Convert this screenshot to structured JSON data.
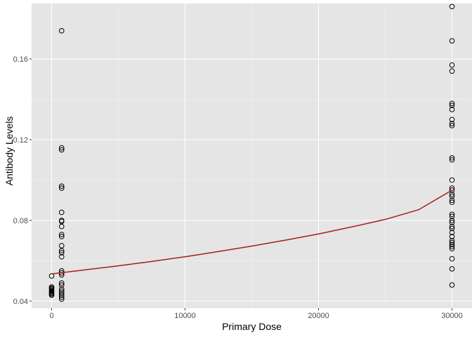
{
  "chart_data": {
    "type": "scatter",
    "title": "",
    "xlabel": "Primary Dose",
    "ylabel": "Antibody Levels",
    "xlim": [
      -1500,
      31500
    ],
    "ylim": [
      0.0365,
      0.1875
    ],
    "x_ticks": [
      0,
      10000,
      20000,
      30000
    ],
    "x_tick_labels": [
      "0",
      "10000",
      "20000",
      "30000"
    ],
    "y_ticks": [
      0.04,
      0.08,
      0.12,
      0.16
    ],
    "y_tick_labels": [
      "0.04",
      "0.08",
      "0.12",
      "0.16"
    ],
    "grid": true,
    "legend": "none",
    "colors": {
      "panel": "#e5e5e5",
      "grid_major": "#ffffff",
      "point_stroke": "#000000",
      "fit_line": "#a31e22"
    },
    "points": [
      {
        "x": 0,
        "y": 0.0525
      },
      {
        "x": 0,
        "y": 0.047
      },
      {
        "x": 0,
        "y": 0.0465
      },
      {
        "x": 0,
        "y": 0.046
      },
      {
        "x": 0,
        "y": 0.0455
      },
      {
        "x": 0,
        "y": 0.045
      },
      {
        "x": 0,
        "y": 0.0445
      },
      {
        "x": 0,
        "y": 0.044
      },
      {
        "x": 0,
        "y": 0.0435
      },
      {
        "x": 0,
        "y": 0.043
      },
      {
        "x": 750,
        "y": 0.174
      },
      {
        "x": 750,
        "y": 0.116
      },
      {
        "x": 750,
        "y": 0.115
      },
      {
        "x": 750,
        "y": 0.097
      },
      {
        "x": 750,
        "y": 0.096
      },
      {
        "x": 750,
        "y": 0.084
      },
      {
        "x": 750,
        "y": 0.08
      },
      {
        "x": 750,
        "y": 0.0795
      },
      {
        "x": 750,
        "y": 0.077
      },
      {
        "x": 750,
        "y": 0.073
      },
      {
        "x": 750,
        "y": 0.072
      },
      {
        "x": 750,
        "y": 0.0675
      },
      {
        "x": 750,
        "y": 0.065
      },
      {
        "x": 750,
        "y": 0.064
      },
      {
        "x": 750,
        "y": 0.062
      },
      {
        "x": 750,
        "y": 0.055
      },
      {
        "x": 750,
        "y": 0.054
      },
      {
        "x": 750,
        "y": 0.053
      },
      {
        "x": 750,
        "y": 0.049
      },
      {
        "x": 750,
        "y": 0.048
      },
      {
        "x": 750,
        "y": 0.046
      },
      {
        "x": 750,
        "y": 0.045
      },
      {
        "x": 750,
        "y": 0.044
      },
      {
        "x": 750,
        "y": 0.043
      },
      {
        "x": 750,
        "y": 0.042
      },
      {
        "x": 750,
        "y": 0.041
      },
      {
        "x": 30000,
        "y": 0.186
      },
      {
        "x": 30000,
        "y": 0.169
      },
      {
        "x": 30000,
        "y": 0.157
      },
      {
        "x": 30000,
        "y": 0.154
      },
      {
        "x": 30000,
        "y": 0.138
      },
      {
        "x": 30000,
        "y": 0.137
      },
      {
        "x": 30000,
        "y": 0.135
      },
      {
        "x": 30000,
        "y": 0.13
      },
      {
        "x": 30000,
        "y": 0.128
      },
      {
        "x": 30000,
        "y": 0.127
      },
      {
        "x": 30000,
        "y": 0.111
      },
      {
        "x": 30000,
        "y": 0.11
      },
      {
        "x": 30000,
        "y": 0.1
      },
      {
        "x": 30000,
        "y": 0.096
      },
      {
        "x": 30000,
        "y": 0.095
      },
      {
        "x": 30000,
        "y": 0.093
      },
      {
        "x": 30000,
        "y": 0.092
      },
      {
        "x": 30000,
        "y": 0.09
      },
      {
        "x": 30000,
        "y": 0.089
      },
      {
        "x": 30000,
        "y": 0.083
      },
      {
        "x": 30000,
        "y": 0.082
      },
      {
        "x": 30000,
        "y": 0.08
      },
      {
        "x": 30000,
        "y": 0.079
      },
      {
        "x": 30000,
        "y": 0.077
      },
      {
        "x": 30000,
        "y": 0.076
      },
      {
        "x": 30000,
        "y": 0.074
      },
      {
        "x": 30000,
        "y": 0.072
      },
      {
        "x": 30000,
        "y": 0.07
      },
      {
        "x": 30000,
        "y": 0.069
      },
      {
        "x": 30000,
        "y": 0.068
      },
      {
        "x": 30000,
        "y": 0.067
      },
      {
        "x": 30000,
        "y": 0.066
      },
      {
        "x": 30000,
        "y": 0.061
      },
      {
        "x": 30000,
        "y": 0.056
      },
      {
        "x": 30000,
        "y": 0.048
      }
    ],
    "fit_line": {
      "x": [
        0,
        2500,
        5000,
        7500,
        10000,
        12500,
        15000,
        17500,
        20000,
        22500,
        25000,
        27500,
        30000
      ],
      "y": [
        0.0535,
        0.0555,
        0.0575,
        0.0597,
        0.062,
        0.0646,
        0.0673,
        0.0702,
        0.0733,
        0.0768,
        0.0805,
        0.0853,
        0.095
      ]
    }
  }
}
